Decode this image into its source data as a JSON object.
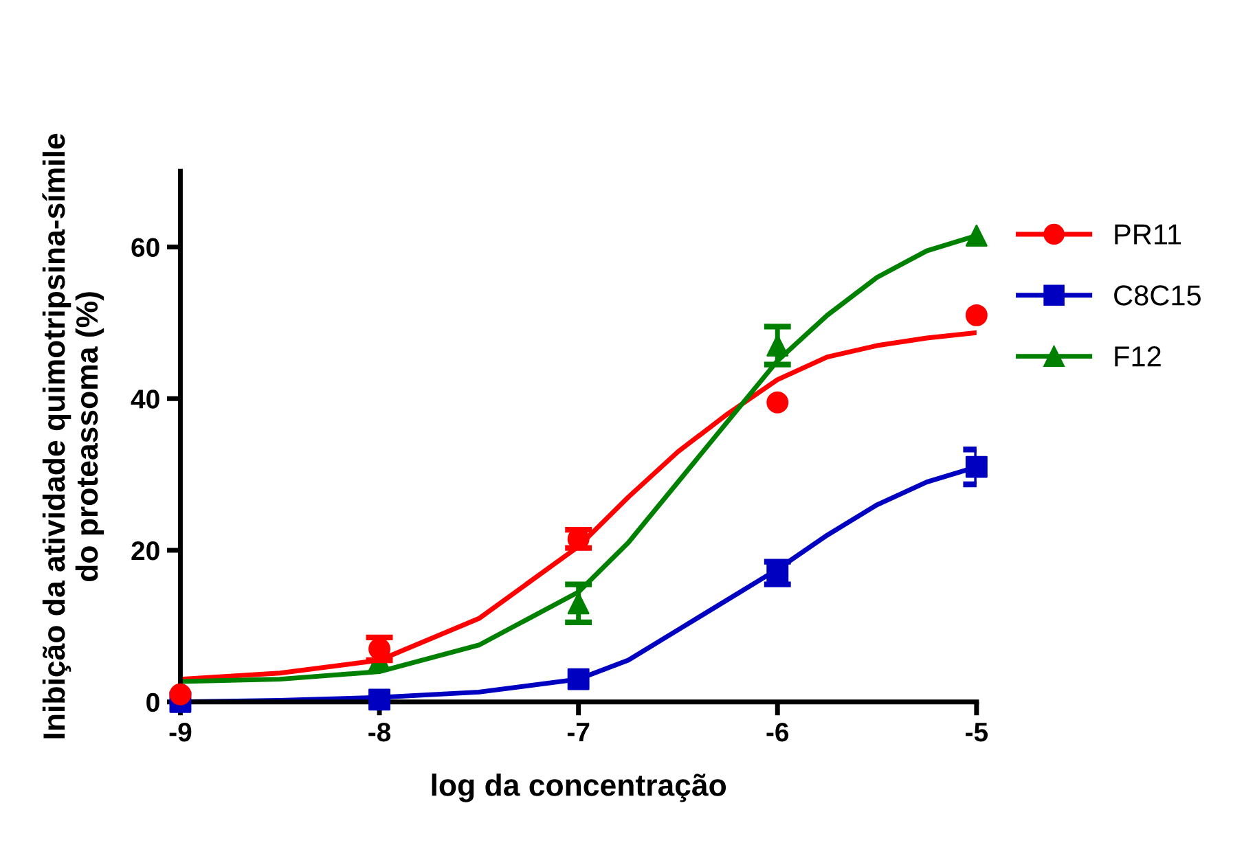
{
  "chart_data": {
    "type": "scatter",
    "xlabel": "log da concentração",
    "ylabel": "Inibição da atividade quimotripsina-símile\ndo proteassoma (%)",
    "xlim": [
      -9,
      -5
    ],
    "xticks": [
      -9,
      -8,
      -7,
      -6,
      -5
    ],
    "ylim": [
      0,
      70
    ],
    "yticks": [
      0,
      20,
      40,
      60
    ],
    "grid": false,
    "legend": "right",
    "series": [
      {
        "name": "PR11",
        "marker": "circle",
        "color": "#ff0000",
        "x": [
          -9,
          -8,
          -7,
          -6,
          -5
        ],
        "values": [
          1,
          7,
          21.5,
          39.5,
          51
        ],
        "errors": [
          null,
          1.5,
          1.2,
          null,
          null
        ]
      },
      {
        "name": "C8C15",
        "marker": "square",
        "color": "#0000c0",
        "x": [
          -9,
          -8,
          -7,
          -6,
          -5
        ],
        "values": [
          0,
          0.3,
          3,
          17,
          31
        ],
        "errors": [
          null,
          null,
          null,
          1.5,
          2.3
        ]
      },
      {
        "name": "F12",
        "marker": "triangle",
        "color": "#008000",
        "x": [
          -8,
          -7,
          -6,
          -5
        ],
        "values": [
          5.5,
          13,
          47,
          61.5
        ],
        "errors": [
          null,
          2.5,
          2.5,
          null
        ]
      },
      {
        "type": "line",
        "marker": "none",
        "color": "#ff0000",
        "x": [
          -9,
          -8.5,
          -8,
          -7.5,
          -7,
          -6.75,
          -6.5,
          -6.25,
          -6,
          -5.75,
          -5.5,
          -5.25,
          -5
        ],
        "values": [
          3,
          3.8,
          5.5,
          11,
          20.5,
          27,
          33,
          38,
          42.5,
          45.5,
          47,
          48,
          48.7
        ]
      },
      {
        "type": "line",
        "marker": "none",
        "color": "#0000c0",
        "x": [
          -9,
          -8.5,
          -8,
          -7.5,
          -7,
          -6.75,
          -6.5,
          -6.25,
          -6,
          -5.75,
          -5.5,
          -5.25,
          -5
        ],
        "values": [
          0,
          0.2,
          0.6,
          1.3,
          3,
          5.5,
          9.5,
          13.5,
          17.5,
          22,
          26,
          29,
          31
        ]
      },
      {
        "type": "line",
        "marker": "none",
        "color": "#008000",
        "x": [
          -9,
          -8.5,
          -8,
          -7.5,
          -7,
          -6.75,
          -6.5,
          -6.25,
          -6,
          -5.75,
          -5.5,
          -5.25,
          -5
        ],
        "values": [
          2.7,
          3,
          4,
          7.5,
          14.5,
          21,
          29,
          37,
          45,
          51,
          56,
          59.5,
          61.5
        ]
      }
    ]
  }
}
